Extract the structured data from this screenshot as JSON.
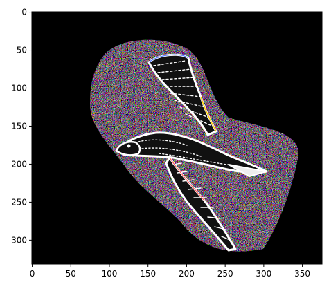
{
  "image_description_colors": {
    "background": "#000000",
    "frame": "#000000",
    "bird_outline": "#ffffff"
  },
  "axes": {
    "x_ticks": [
      0,
      50,
      100,
      150,
      200,
      250,
      300,
      350
    ],
    "y_ticks": [
      0,
      50,
      100,
      150,
      200,
      250,
      300
    ],
    "x_range": [
      -0.5,
      375.5
    ],
    "y_range": [
      331.5,
      -0.5
    ]
  }
}
